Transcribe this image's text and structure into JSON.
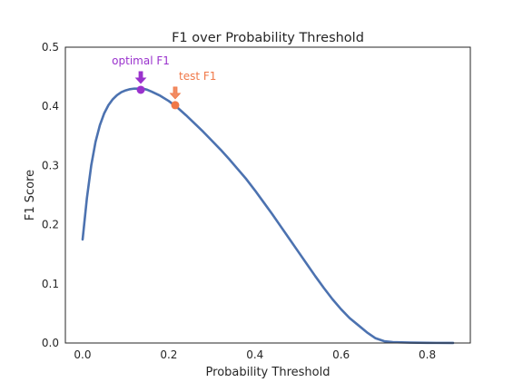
{
  "chart_data": {
    "type": "line",
    "title": "F1 over Probability Threshold",
    "xlabel": "Probability Threshold",
    "ylabel": "F1 Score",
    "xlim": [
      -0.04,
      0.9
    ],
    "ylim": [
      0.0,
      0.5
    ],
    "xticks": [
      0.0,
      0.2,
      0.4,
      0.6,
      0.8
    ],
    "xtick_labels": [
      "0.0",
      "0.2",
      "0.4",
      "0.6",
      "0.8"
    ],
    "yticks": [
      0.0,
      0.1,
      0.2,
      0.3,
      0.4,
      0.5
    ],
    "ytick_labels": [
      "0.0",
      "0.1",
      "0.2",
      "0.3",
      "0.4",
      "0.5"
    ],
    "grid": false,
    "line_color": "#4c72b0",
    "series": [
      {
        "x": [
          0.0,
          0.01,
          0.02,
          0.03,
          0.04,
          0.05,
          0.06,
          0.07,
          0.08,
          0.09,
          0.1,
          0.11,
          0.12,
          0.13,
          0.14,
          0.15,
          0.16,
          0.18,
          0.2,
          0.22,
          0.24,
          0.26,
          0.28,
          0.3,
          0.32,
          0.34,
          0.36,
          0.38,
          0.4,
          0.42,
          0.44,
          0.46,
          0.48,
          0.5,
          0.52,
          0.54,
          0.56,
          0.58,
          0.6,
          0.62,
          0.64,
          0.66,
          0.68,
          0.7,
          0.72,
          0.74,
          0.76,
          0.78,
          0.8,
          0.82,
          0.86
        ],
        "y": [
          0.175,
          0.245,
          0.3,
          0.34,
          0.368,
          0.388,
          0.402,
          0.412,
          0.419,
          0.424,
          0.427,
          0.429,
          0.43,
          0.43,
          0.43,
          0.428,
          0.425,
          0.418,
          0.409,
          0.398,
          0.385,
          0.371,
          0.357,
          0.342,
          0.327,
          0.311,
          0.294,
          0.277,
          0.258,
          0.238,
          0.218,
          0.197,
          0.176,
          0.155,
          0.134,
          0.113,
          0.093,
          0.074,
          0.057,
          0.042,
          0.03,
          0.018,
          0.008,
          0.003,
          0.0015,
          0.001,
          0.0007,
          0.0005,
          0.0003,
          0.0002,
          0.0001
        ]
      }
    ],
    "annotations": [
      {
        "text": "optimal F1",
        "x": 0.135,
        "y": 0.428,
        "color": "#9a32cd"
      },
      {
        "text": "test F1",
        "x": 0.215,
        "y": 0.402,
        "color": "#f07848"
      }
    ]
  }
}
